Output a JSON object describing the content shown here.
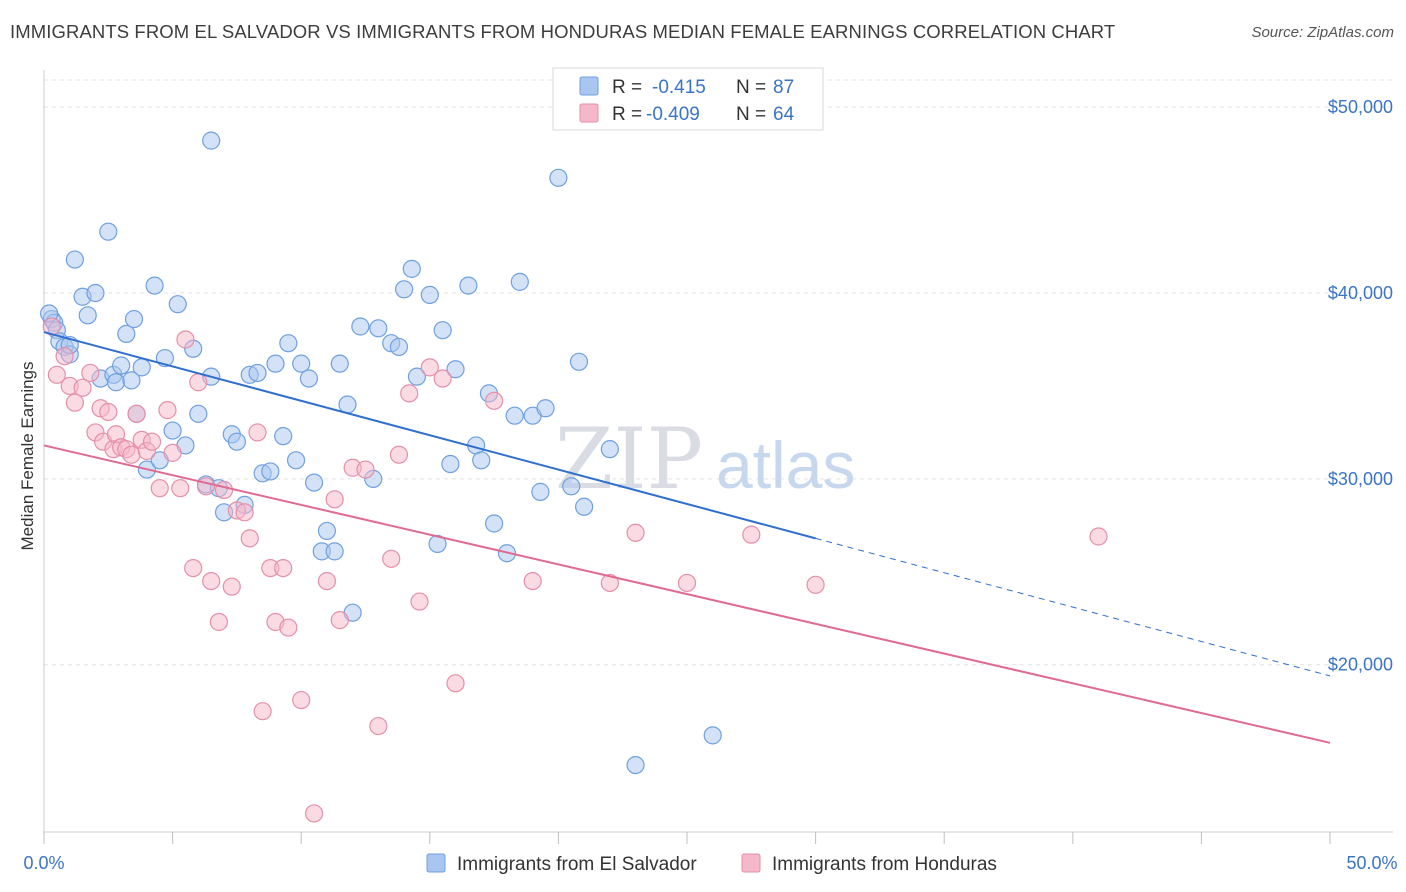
{
  "title": "IMMIGRANTS FROM EL SALVADOR VS IMMIGRANTS FROM HONDURAS MEDIAN FEMALE EARNINGS CORRELATION CHART",
  "source": "Source: ZipAtlas.com",
  "watermark": {
    "zip": "ZIP",
    "atlas": "atlas"
  },
  "legend": {
    "r_label": "R =",
    "n_label": "N =",
    "rows": [
      {
        "r": "-0.415",
        "n": "87",
        "color": "#a9c6f0"
      },
      {
        "r": "-0.409",
        "n": "64",
        "color": "#f5b8ca"
      }
    ]
  },
  "chart_data": {
    "type": "scatter",
    "title": "IMMIGRANTS FROM EL SALVADOR VS IMMIGRANTS FROM HONDURAS MEDIAN FEMALE EARNINGS CORRELATION CHART",
    "xlabel": "",
    "ylabel": "Median Female Earnings",
    "xlim": [
      0,
      50
    ],
    "ylim": [
      11000,
      52000
    ],
    "x_tick_labels": [
      "0.0%",
      "50.0%"
    ],
    "y_ticks": [
      20000,
      30000,
      40000,
      50000
    ],
    "y_tick_labels": [
      "$20,000",
      "$30,000",
      "$40,000",
      "$50,000"
    ],
    "grid": true,
    "legend_position": "top-center",
    "series": [
      {
        "name": "Immigrants from El Salvador",
        "color": "#6fa0e0",
        "fill": "#a9c6f0",
        "trend": {
          "x0": 0,
          "y0": 37900,
          "x1": 30,
          "y1": 26800,
          "dashed_to_x": 50,
          "dashed_to_y": 19400
        },
        "points": [
          [
            0.3,
            38600
          ],
          [
            0.4,
            38400
          ],
          [
            0.5,
            38000
          ],
          [
            0.6,
            37400
          ],
          [
            0.8,
            37100
          ],
          [
            1.0,
            36700
          ],
          [
            1.2,
            41800
          ],
          [
            1.5,
            39800
          ],
          [
            1.7,
            38800
          ],
          [
            2.0,
            40000
          ],
          [
            2.2,
            35400
          ],
          [
            2.5,
            43300
          ],
          [
            2.7,
            35600
          ],
          [
            2.8,
            35200
          ],
          [
            3.0,
            36100
          ],
          [
            3.2,
            37800
          ],
          [
            3.4,
            35300
          ],
          [
            3.5,
            38600
          ],
          [
            3.6,
            33500
          ],
          [
            3.8,
            36000
          ],
          [
            4.0,
            30500
          ],
          [
            4.3,
            40400
          ],
          [
            4.5,
            31000
          ],
          [
            4.7,
            36500
          ],
          [
            5.0,
            32600
          ],
          [
            5.2,
            39400
          ],
          [
            5.5,
            31800
          ],
          [
            5.8,
            37000
          ],
          [
            6.0,
            33500
          ],
          [
            6.3,
            29700
          ],
          [
            6.5,
            35500
          ],
          [
            6.8,
            29500
          ],
          [
            7.0,
            28200
          ],
          [
            7.3,
            32400
          ],
          [
            7.5,
            32000
          ],
          [
            7.8,
            28600
          ],
          [
            8.0,
            35600
          ],
          [
            8.3,
            35700
          ],
          [
            8.5,
            30300
          ],
          [
            8.8,
            30400
          ],
          [
            9.0,
            36200
          ],
          [
            9.3,
            32300
          ],
          [
            9.5,
            37300
          ],
          [
            9.8,
            31000
          ],
          [
            10.0,
            36200
          ],
          [
            10.3,
            35400
          ],
          [
            10.5,
            29800
          ],
          [
            10.8,
            26100
          ],
          [
            11.0,
            27200
          ],
          [
            11.3,
            26100
          ],
          [
            11.5,
            36200
          ],
          [
            11.8,
            34000
          ],
          [
            12.0,
            22800
          ],
          [
            12.3,
            38200
          ],
          [
            12.8,
            30000
          ],
          [
            13.0,
            38100
          ],
          [
            13.5,
            37300
          ],
          [
            13.8,
            37100
          ],
          [
            14.0,
            40200
          ],
          [
            14.3,
            41300
          ],
          [
            14.5,
            35500
          ],
          [
            15.0,
            39900
          ],
          [
            15.3,
            26500
          ],
          [
            15.5,
            38000
          ],
          [
            15.8,
            30800
          ],
          [
            16.0,
            35900
          ],
          [
            16.5,
            40400
          ],
          [
            16.8,
            31800
          ],
          [
            17.0,
            31000
          ],
          [
            17.3,
            34600
          ],
          [
            17.5,
            27600
          ],
          [
            18.0,
            26000
          ],
          [
            18.3,
            33400
          ],
          [
            18.5,
            40600
          ],
          [
            19.0,
            33400
          ],
          [
            19.3,
            29300
          ],
          [
            19.5,
            33800
          ],
          [
            20.0,
            46200
          ],
          [
            20.5,
            29600
          ],
          [
            20.8,
            36300
          ],
          [
            21.0,
            28500
          ],
          [
            22.0,
            31600
          ],
          [
            6.5,
            48200
          ],
          [
            23.0,
            14600
          ],
          [
            26.0,
            16200
          ],
          [
            1.0,
            37200
          ],
          [
            0.2,
            38900
          ]
        ]
      },
      {
        "name": "Immigrants from Honduras",
        "color": "#e58fa9",
        "fill": "#f5b8ca",
        "trend": {
          "x0": 0,
          "y0": 31800,
          "x1": 50,
          "y1": 15800
        },
        "points": [
          [
            0.3,
            38200
          ],
          [
            0.5,
            35600
          ],
          [
            0.8,
            36600
          ],
          [
            1.0,
            35000
          ],
          [
            1.2,
            34100
          ],
          [
            1.5,
            34900
          ],
          [
            1.8,
            35700
          ],
          [
            2.0,
            32500
          ],
          [
            2.2,
            33800
          ],
          [
            2.3,
            32000
          ],
          [
            2.5,
            33600
          ],
          [
            2.7,
            31600
          ],
          [
            2.8,
            32400
          ],
          [
            3.0,
            31700
          ],
          [
            3.2,
            31600
          ],
          [
            3.4,
            31300
          ],
          [
            3.6,
            33500
          ],
          [
            3.8,
            32100
          ],
          [
            4.0,
            31500
          ],
          [
            4.2,
            32000
          ],
          [
            4.5,
            29500
          ],
          [
            4.8,
            33700
          ],
          [
            5.0,
            31400
          ],
          [
            5.3,
            29500
          ],
          [
            5.5,
            37500
          ],
          [
            5.8,
            25200
          ],
          [
            6.0,
            35200
          ],
          [
            6.3,
            29600
          ],
          [
            6.5,
            24500
          ],
          [
            6.8,
            22300
          ],
          [
            7.0,
            29400
          ],
          [
            7.3,
            24200
          ],
          [
            7.5,
            28300
          ],
          [
            7.8,
            28200
          ],
          [
            8.0,
            26800
          ],
          [
            8.3,
            32500
          ],
          [
            8.5,
            17500
          ],
          [
            8.8,
            25200
          ],
          [
            9.0,
            22300
          ],
          [
            9.3,
            25200
          ],
          [
            9.5,
            22000
          ],
          [
            10.0,
            18100
          ],
          [
            10.5,
            12000
          ],
          [
            11.0,
            24500
          ],
          [
            11.3,
            28900
          ],
          [
            11.5,
            22400
          ],
          [
            12.0,
            30600
          ],
          [
            12.5,
            30500
          ],
          [
            13.0,
            16700
          ],
          [
            13.5,
            25700
          ],
          [
            13.8,
            31300
          ],
          [
            14.2,
            34600
          ],
          [
            14.6,
            23400
          ],
          [
            15.0,
            36000
          ],
          [
            15.5,
            35400
          ],
          [
            16.0,
            19000
          ],
          [
            17.5,
            34200
          ],
          [
            19.0,
            24500
          ],
          [
            22.0,
            24400
          ],
          [
            23.0,
            27100
          ],
          [
            25.0,
            24400
          ],
          [
            27.5,
            27000
          ],
          [
            30.0,
            24300
          ],
          [
            41.0,
            26900
          ]
        ]
      }
    ]
  }
}
